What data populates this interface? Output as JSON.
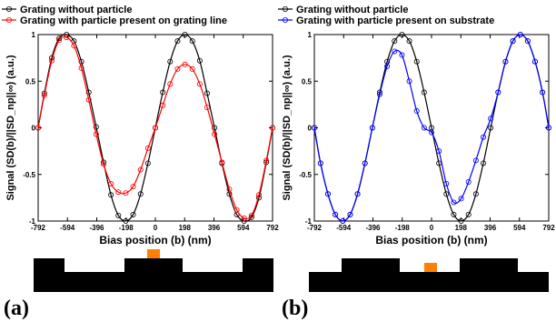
{
  "chart_data": [
    {
      "type": "line",
      "panel_label": "(a)",
      "xlabel": "Bias position (b) (nm)",
      "ylabel": "Signal (SD(b)/||SD_np||∞) (a.u.)",
      "xlim": [
        -792,
        792
      ],
      "ylim": [
        -1,
        1
      ],
      "xticks": [
        -792,
        -594,
        -396,
        -198,
        0,
        198,
        396,
        594,
        792
      ],
      "yticks": [
        -1,
        -0.5,
        0,
        0.5,
        1
      ],
      "xtick_labels": [
        "-792",
        "-594",
        "-396",
        "-198",
        "0",
        "198",
        "396",
        "594",
        "792"
      ],
      "ytick_labels": [
        "-1",
        "-0.5",
        "0",
        "0.5",
        "1"
      ],
      "grid": false,
      "legend_position": "top-left",
      "series": [
        {
          "name": "Grating without particle",
          "color": "#000000",
          "marker": "circle",
          "x": [
            -792,
            -750,
            -700,
            -650,
            -600,
            -550,
            -500,
            -450,
            -400,
            -350,
            -300,
            -250,
            -200,
            -150,
            -100,
            -50,
            0,
            50,
            100,
            150,
            200,
            250,
            300,
            350,
            400,
            450,
            500,
            550,
            600,
            650,
            700,
            750,
            792
          ],
          "y": [
            0,
            0.37,
            0.75,
            0.96,
            1.0,
            0.93,
            0.71,
            0.38,
            0.01,
            -0.37,
            -0.72,
            -0.94,
            -1.0,
            -0.93,
            -0.71,
            -0.38,
            0,
            0.38,
            0.71,
            0.93,
            1.0,
            0.93,
            0.72,
            0.37,
            0.0,
            -0.38,
            -0.71,
            -0.93,
            -1.0,
            -0.96,
            -0.75,
            -0.37,
            0
          ]
        },
        {
          "name": "Grating with particle present on grating line",
          "color": "#ff0000",
          "marker": "circle",
          "x": [
            -792,
            -750,
            -700,
            -650,
            -600,
            -550,
            -500,
            -450,
            -400,
            -350,
            -300,
            -250,
            -200,
            -150,
            -100,
            -50,
            0,
            50,
            100,
            150,
            200,
            250,
            300,
            350,
            400,
            450,
            500,
            550,
            600,
            650,
            700,
            750,
            792
          ],
          "y": [
            0,
            0.35,
            0.72,
            0.94,
            0.97,
            0.88,
            0.64,
            0.3,
            -0.07,
            -0.39,
            -0.6,
            -0.69,
            -0.7,
            -0.63,
            -0.45,
            -0.22,
            0,
            0.24,
            0.47,
            0.63,
            0.68,
            0.63,
            0.47,
            0.22,
            -0.07,
            -0.37,
            -0.66,
            -0.88,
            -0.97,
            -0.94,
            -0.72,
            -0.35,
            0
          ]
        }
      ]
    },
    {
      "type": "line",
      "panel_label": "(b)",
      "xlabel": "Bias position (b) (nm)",
      "ylabel": "Signal (SD(b)/||SD_np||∞) (a.u.)",
      "xlim": [
        -792,
        792
      ],
      "ylim": [
        -1,
        1
      ],
      "xticks": [
        -792,
        -594,
        -396,
        -198,
        0,
        198,
        396,
        594,
        792
      ],
      "yticks": [
        -1,
        -0.5,
        0,
        0.5,
        1
      ],
      "xtick_labels": [
        "-792",
        "-594",
        "-396",
        "-198",
        "0",
        "198",
        "396",
        "594",
        "792"
      ],
      "ytick_labels": [
        "-1",
        "-0.5",
        "0",
        "0.5",
        "1"
      ],
      "grid": false,
      "legend_position": "top-left",
      "series": [
        {
          "name": "Grating without particle",
          "color": "#000000",
          "marker": "circle",
          "x": [
            -792,
            -750,
            -700,
            -650,
            -600,
            -550,
            -500,
            -450,
            -400,
            -350,
            -300,
            -250,
            -200,
            -150,
            -100,
            -50,
            0,
            50,
            100,
            150,
            200,
            250,
            300,
            350,
            400,
            450,
            500,
            550,
            600,
            650,
            700,
            750,
            792
          ],
          "y": [
            0,
            -0.38,
            -0.71,
            -0.93,
            -1.0,
            -0.93,
            -0.71,
            -0.38,
            0,
            0.38,
            0.71,
            0.93,
            1.0,
            0.93,
            0.71,
            0.38,
            0,
            -0.38,
            -0.71,
            -0.93,
            -1.0,
            -0.93,
            -0.71,
            -0.38,
            0,
            0.38,
            0.71,
            0.93,
            1.0,
            0.93,
            0.71,
            0.38,
            0
          ]
        },
        {
          "name": "Grating with particle present on substrate",
          "color": "#0000ff",
          "marker": "circle",
          "x": [
            -792,
            -750,
            -700,
            -650,
            -600,
            -550,
            -500,
            -450,
            -400,
            -350,
            -300,
            -250,
            -200,
            -150,
            -100,
            -50,
            0,
            50,
            100,
            150,
            200,
            250,
            300,
            350,
            400,
            450,
            500,
            550,
            600,
            650,
            700,
            750,
            792
          ],
          "y": [
            0,
            -0.38,
            -0.71,
            -0.93,
            -1.0,
            -0.93,
            -0.71,
            -0.38,
            0,
            0.36,
            0.66,
            0.82,
            0.78,
            0.5,
            0.18,
            0.0,
            -0.05,
            -0.25,
            -0.6,
            -0.8,
            -0.76,
            -0.58,
            -0.35,
            -0.1,
            0.1,
            0.38,
            0.71,
            0.93,
            1.0,
            0.93,
            0.71,
            0.38,
            0
          ]
        }
      ]
    }
  ],
  "schematics": [
    {
      "particle_position": "on grating line",
      "colors": {
        "grating": "#000000",
        "particle": "#ff8000"
      }
    },
    {
      "particle_position": "on substrate",
      "colors": {
        "grating": "#000000",
        "particle": "#ff8000"
      }
    }
  ]
}
